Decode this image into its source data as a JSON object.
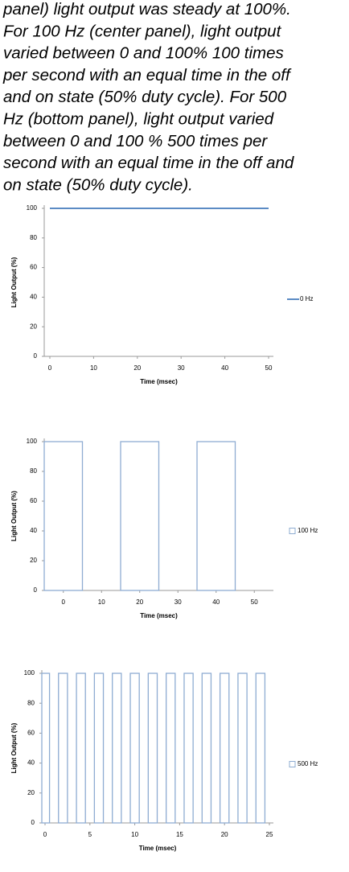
{
  "caption": [
    "panel) light output was steady at 100%.",
    "For 100 Hz (center panel), light output",
    "varied between 0 and 100% 100 times",
    "per second with an equal time in the off",
    "and on state (50% duty cycle). For 500",
    "Hz (bottom panel), light output varied",
    "between 0 and 100 % 500 times per",
    "second with an equal time in the off and",
    "on state (50% duty cycle)."
  ],
  "chart_data": [
    {
      "type": "line",
      "x_label": "Time (msec)",
      "y_label": "Light Output (%)",
      "x": [
        0,
        50
      ],
      "series": [
        {
          "name": "0 Hz",
          "color": "#5b8bc4",
          "values": [
            100,
            100
          ]
        }
      ],
      "xlim": [
        0,
        50
      ],
      "xticks": [
        0,
        10,
        20,
        30,
        40,
        50
      ],
      "ylim": [
        0,
        100
      ],
      "yticks": [
        0,
        20,
        40,
        60,
        80,
        100
      ],
      "legend": "right"
    },
    {
      "type": "bar",
      "x_label": "Time (msec)",
      "y_label": "Light Output (%)",
      "x": [
        0,
        20,
        40
      ],
      "series": [
        {
          "name": "100 Hz",
          "color": "#8eacd2",
          "values": [
            100,
            100,
            100
          ]
        }
      ],
      "xlim": [
        -5,
        55
      ],
      "xticks": [
        0,
        10,
        20,
        30,
        40,
        50
      ],
      "ylim": [
        0,
        100
      ],
      "yticks": [
        0,
        20,
        40,
        60,
        80,
        100
      ],
      "legend": "right"
    },
    {
      "type": "bar",
      "x_label": "Time (msec)",
      "y_label": "Light Output (%)",
      "x": [
        0,
        2,
        4,
        6,
        8,
        10,
        12,
        14,
        16,
        18,
        20,
        22,
        24
      ],
      "series": [
        {
          "name": "500 Hz",
          "color": "#8eacd2",
          "values": [
            100,
            100,
            100,
            100,
            100,
            100,
            100,
            100,
            100,
            100,
            100,
            100,
            100
          ]
        }
      ],
      "xlim": [
        0,
        25
      ],
      "xticks": [
        0,
        5,
        10,
        15,
        20,
        25
      ],
      "ylim": [
        0,
        100
      ],
      "yticks": [
        0,
        20,
        40,
        60,
        80,
        100
      ],
      "legend": "right"
    }
  ]
}
